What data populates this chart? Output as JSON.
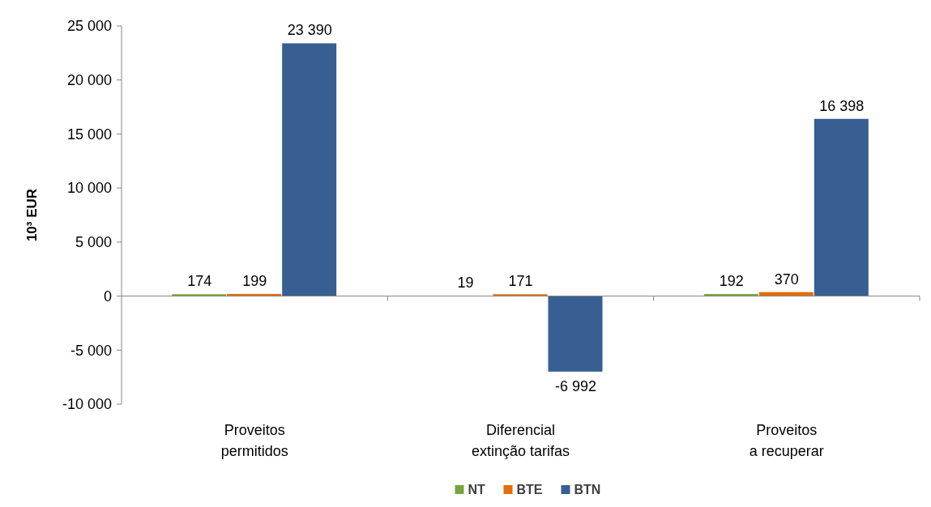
{
  "chart_data": {
    "type": "bar",
    "ylabel": "10³ EUR",
    "categories": [
      "Proveitos\npermitidos",
      "Diferencial\nextinção tarifas",
      "Proveitos\na recuperar"
    ],
    "series": [
      {
        "name": "NT",
        "color": "#77a640",
        "values": [
          174,
          19,
          192
        ],
        "value_labels": [
          "174",
          "19",
          "192"
        ]
      },
      {
        "name": "BTE",
        "color": "#e46c0a",
        "values": [
          199,
          171,
          370
        ],
        "value_labels": [
          "199",
          "171",
          "370"
        ]
      },
      {
        "name": "BTN",
        "color": "#375f92",
        "values": [
          23390,
          -6992,
          16398
        ],
        "value_labels": [
          "23 390",
          "-6 992",
          "16 398"
        ]
      }
    ],
    "ylim": [
      -10000,
      25000
    ],
    "yticks": [
      {
        "value": -10000,
        "label": "-10 000"
      },
      {
        "value": -5000,
        "label": "-5 000"
      },
      0,
      {
        "value": 5000,
        "label": "5 000"
      },
      {
        "value": 10000,
        "label": "10 000"
      },
      {
        "value": 15000,
        "label": "15 000"
      },
      {
        "value": 20000,
        "label": "20 000"
      },
      {
        "value": 25000,
        "label": "25 000"
      }
    ],
    "legend": "bottom"
  }
}
